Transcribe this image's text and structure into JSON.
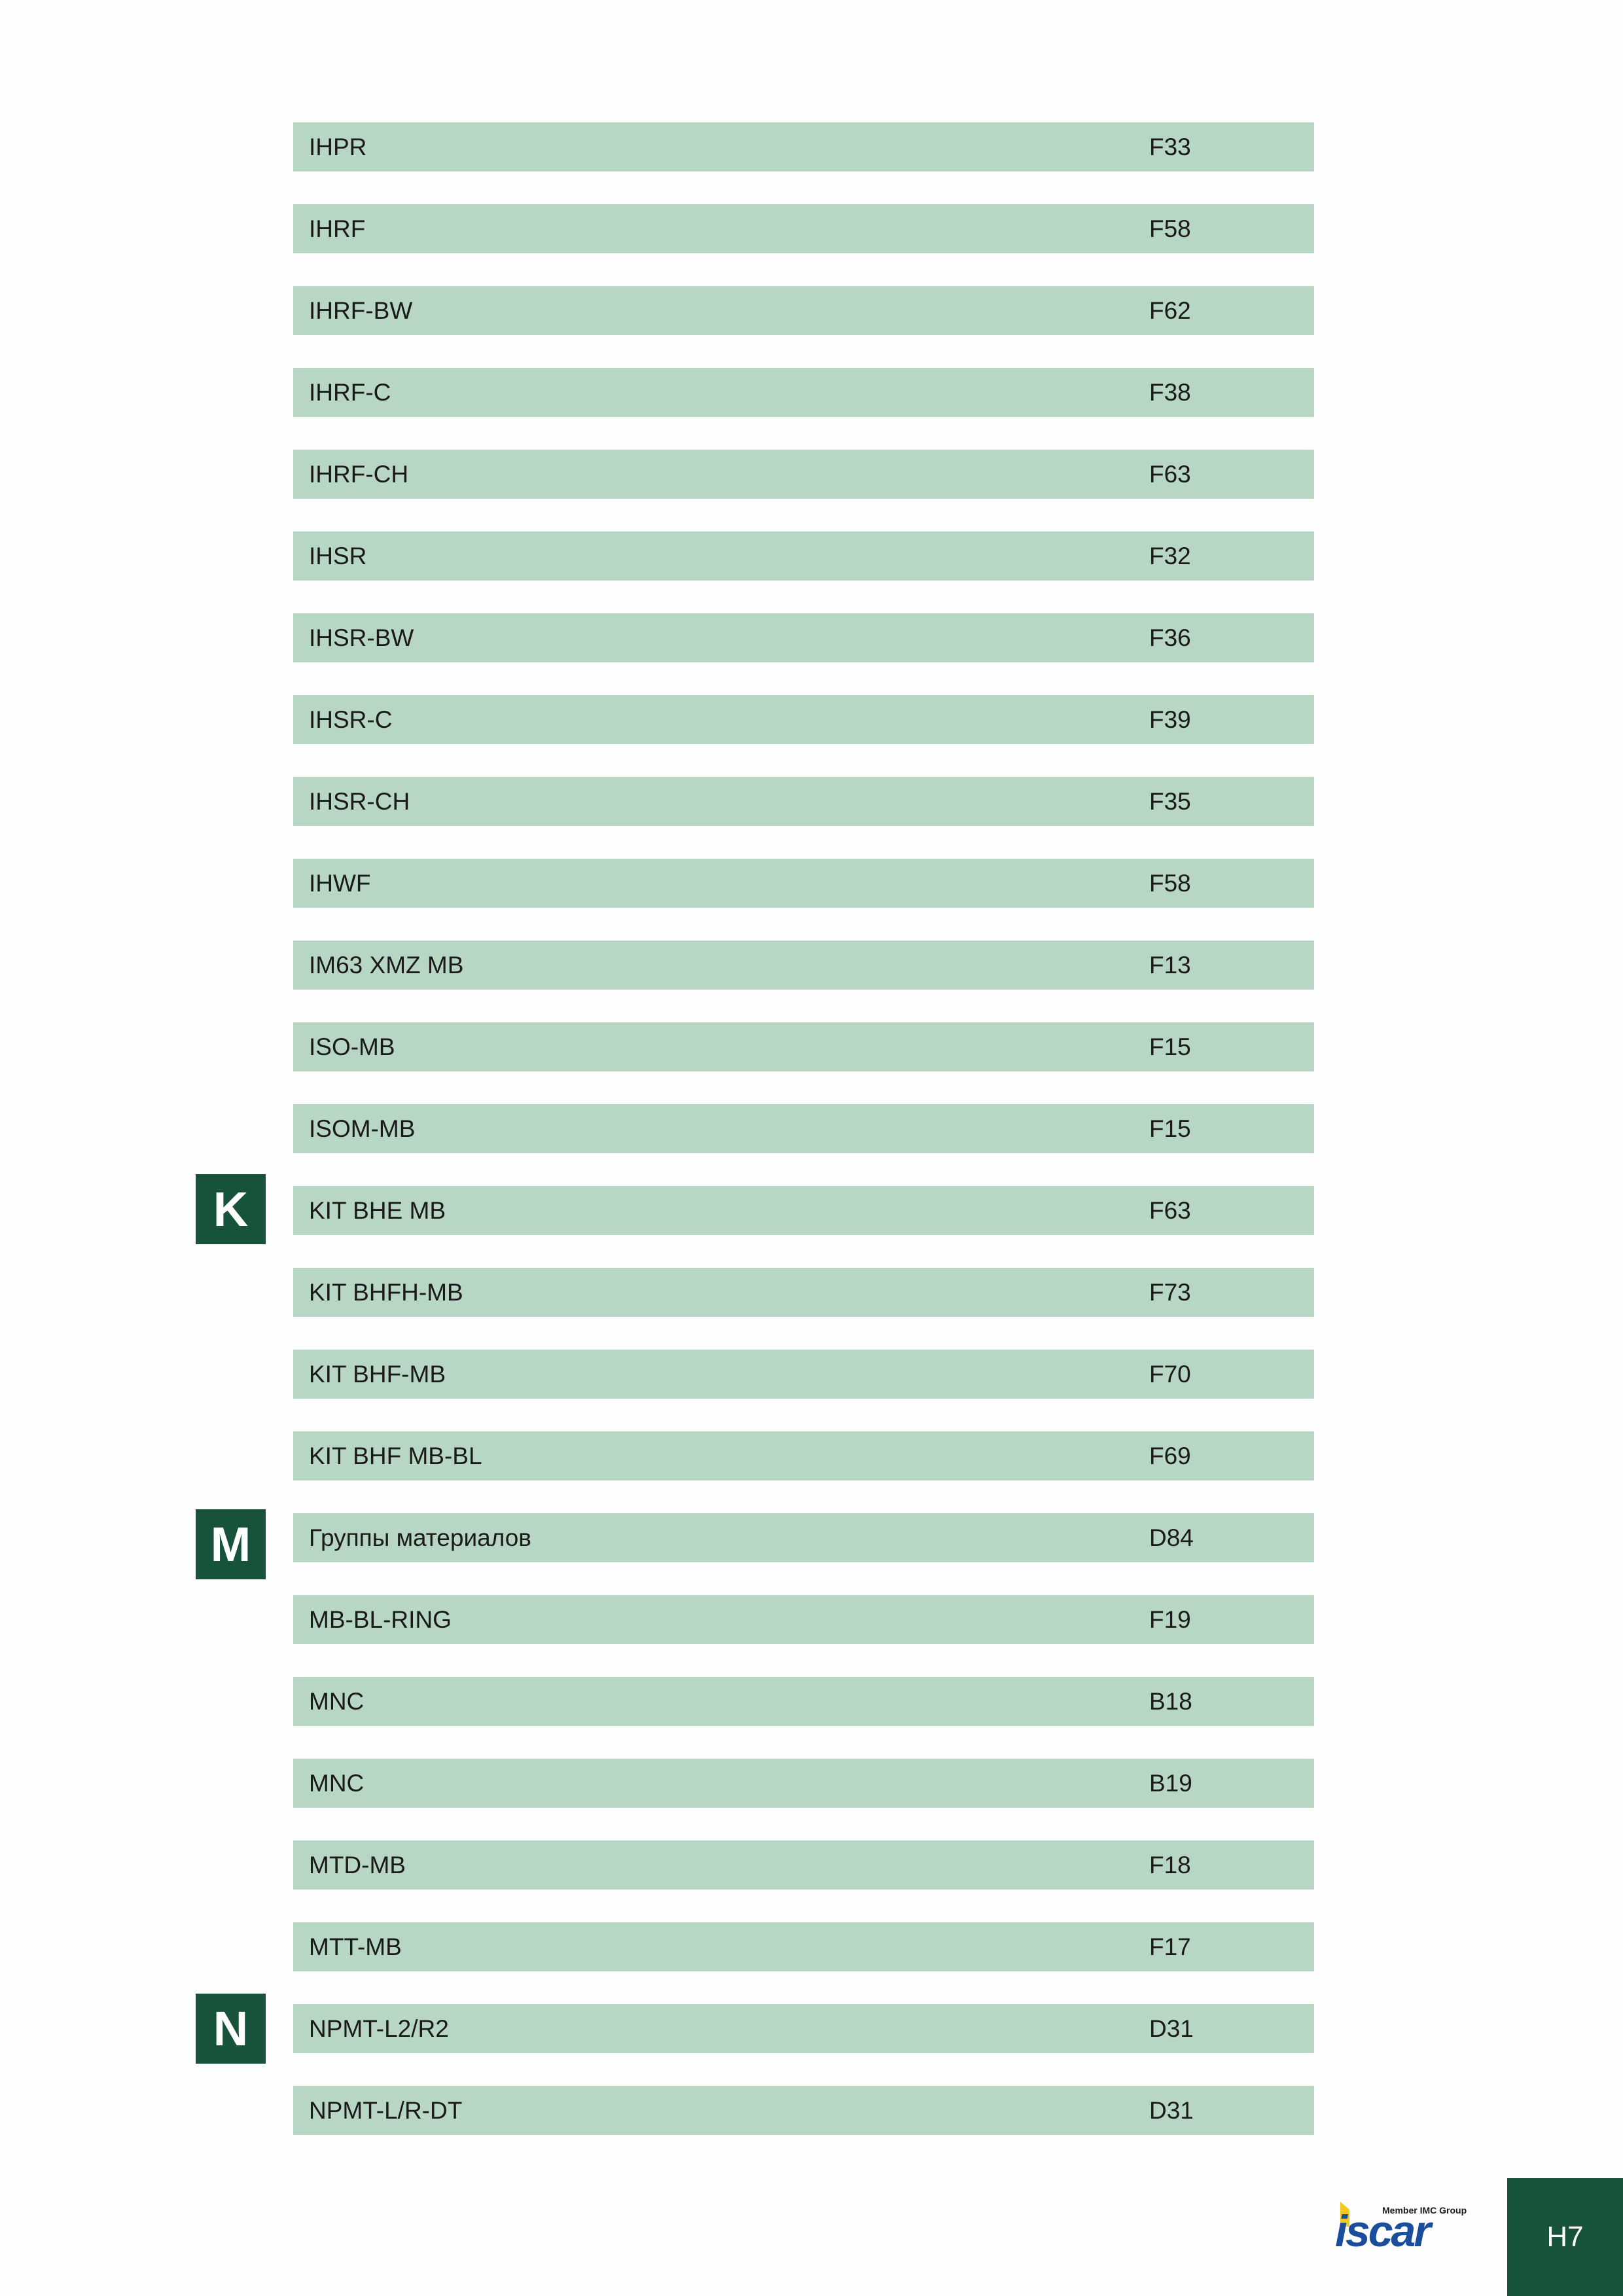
{
  "index_rows": [
    {
      "name": "IHPR",
      "page": "F33"
    },
    {
      "name": "IHRF",
      "page": "F58"
    },
    {
      "name": "IHRF-BW",
      "page": "F62"
    },
    {
      "name": "IHRF-C",
      "page": "F38"
    },
    {
      "name": "IHRF-CH",
      "page": "F63"
    },
    {
      "name": "IHSR",
      "page": "F32"
    },
    {
      "name": "IHSR-BW",
      "page": "F36"
    },
    {
      "name": "IHSR-C",
      "page": "F39"
    },
    {
      "name": "IHSR-CH",
      "page": "F35"
    },
    {
      "name": "IHWF",
      "page": "F58"
    },
    {
      "name": "IM63 XMZ MB",
      "page": "F13"
    },
    {
      "name": "ISO-MB",
      "page": "F15"
    },
    {
      "name": "ISOM-MB",
      "page": "F15"
    },
    {
      "name": "KIT BHE MB",
      "page": "F63"
    },
    {
      "name": "KIT BHFH-MB",
      "page": "F73"
    },
    {
      "name": "KIT BHF-MB",
      "page": "F70"
    },
    {
      "name": "KIT BHF MB-BL",
      "page": "F69"
    },
    {
      "name": "Группы материалов",
      "page": "D84"
    },
    {
      "name": "MB-BL-RING",
      "page": "F19"
    },
    {
      "name": "MNC",
      "page": "B18"
    },
    {
      "name": "MNC",
      "page": "B19"
    },
    {
      "name": "MTD-MB",
      "page": "F18"
    },
    {
      "name": "MTT-MB",
      "page": "F17"
    },
    {
      "name": "NPMT-L2/R2",
      "page": "D31"
    },
    {
      "name": "NPMT-L/R-DT",
      "page": "D31"
    }
  ],
  "letter_tabs": [
    {
      "letter": "K",
      "row": 13
    },
    {
      "letter": "M",
      "row": 17
    },
    {
      "letter": "N",
      "row": 23
    }
  ],
  "footer": {
    "logo_tagline": "Member IMC Group",
    "logo_wordmark": "iscar",
    "page_number": "H7"
  },
  "colors": {
    "row_background": "#b7d7c4",
    "tab_background": "#17523a",
    "logo_blue": "#1a4e9c",
    "logo_yellow": "#f3c81b"
  }
}
